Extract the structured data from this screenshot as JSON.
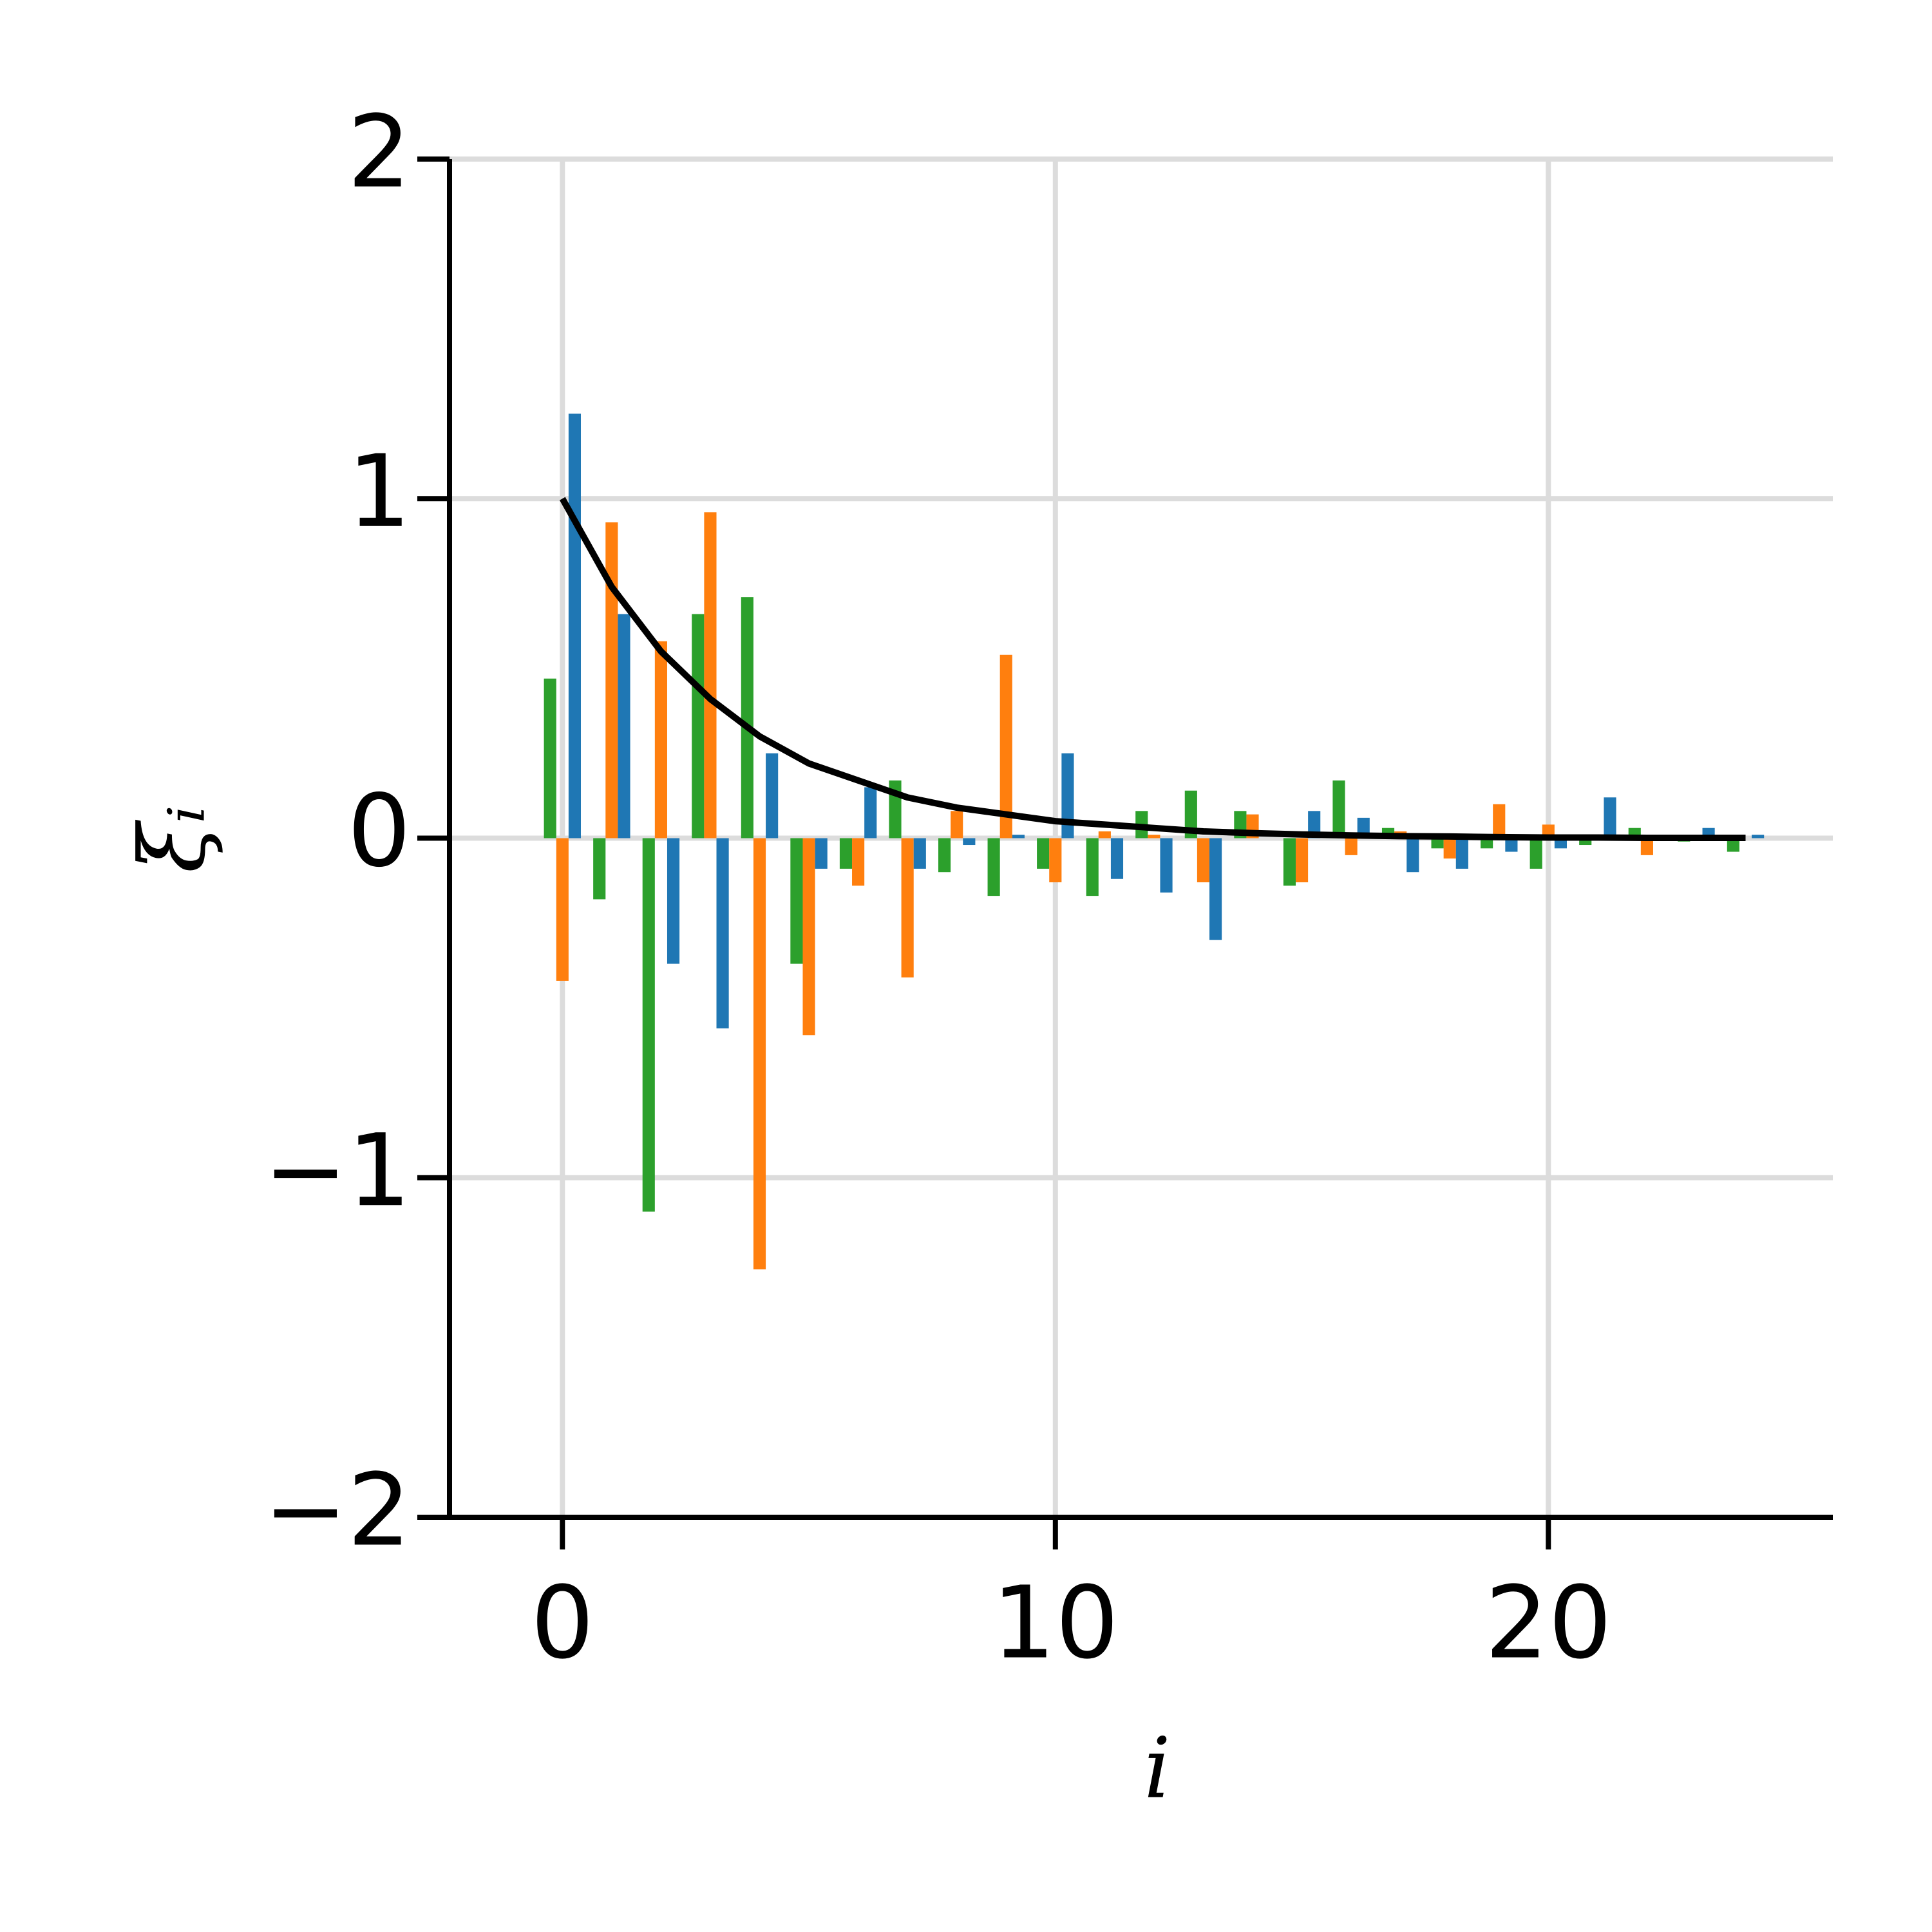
{
  "chart_data": {
    "type": "bar",
    "xlabel": "i",
    "ylabel": "ξᵢ",
    "x": [
      0,
      1,
      2,
      3,
      4,
      5,
      6,
      7,
      8,
      9,
      10,
      11,
      12,
      13,
      14,
      15,
      16,
      17,
      18,
      19,
      20,
      21,
      22,
      23,
      24
    ],
    "series": [
      {
        "color": "#2ca02c",
        "values": [
          0.47,
          -0.18,
          -1.1,
          0.66,
          0.71,
          -0.37,
          -0.09,
          0.17,
          -0.1,
          -0.17,
          -0.09,
          -0.17,
          0.08,
          0.14,
          0.08,
          -0.14,
          0.17,
          0.03,
          -0.03,
          -0.03,
          -0.09,
          -0.02,
          0.03,
          -0.01,
          -0.04
        ]
      },
      {
        "color": "#ff7f0e",
        "values": [
          -0.42,
          0.93,
          0.58,
          0.96,
          -1.27,
          -0.58,
          -0.14,
          -0.41,
          0.08,
          0.54,
          -0.13,
          0.02,
          0.01,
          -0.13,
          0.07,
          -0.13,
          -0.05,
          0.02,
          -0.06,
          0.1,
          0.04,
          0.01,
          -0.05,
          0.0,
          0.0
        ]
      },
      {
        "color": "#1f77b4",
        "values": [
          1.25,
          0.66,
          -0.37,
          -0.56,
          0.25,
          -0.09,
          0.15,
          -0.09,
          -0.02,
          0.01,
          0.25,
          -0.12,
          -0.16,
          -0.3,
          0.0,
          0.08,
          0.06,
          -0.1,
          -0.09,
          -0.04,
          -0.03,
          0.12,
          0.01,
          0.03,
          0.01
        ]
      },
      {
        "type": "line",
        "color": "#000000",
        "values": [
          1.0,
          0.74,
          0.55,
          0.41,
          0.3,
          0.22,
          0.17,
          0.12,
          0.09,
          0.07,
          0.05,
          0.04,
          0.03,
          0.02,
          0.015,
          0.011,
          0.008,
          0.006,
          0.005,
          0.003,
          0.002,
          0.002,
          0.001,
          0.001,
          0.001
        ]
      }
    ],
    "xlim": [
      -2.29,
      25.77
    ],
    "xticks": [
      0,
      10,
      20
    ],
    "ylim": [
      -2,
      2
    ],
    "yticks": [
      {
        "value": -2,
        "label": "−2"
      },
      {
        "value": -1,
        "label": "−1"
      },
      0,
      1,
      2
    ],
    "grid": true
  }
}
